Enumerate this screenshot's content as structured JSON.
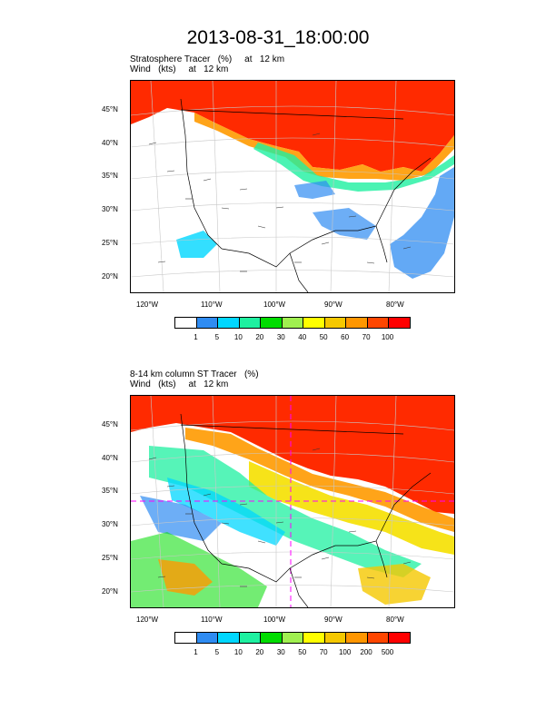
{
  "title": "2013-08-31_18:00:00",
  "panels": [
    {
      "title_line1": "Stratosphere Tracer   (%)     at   12 km",
      "title_line2": "Wind   (kts)     at   12 km",
      "lat_labels": [
        "45°N",
        "40°N",
        "35°N",
        "30°N",
        "25°N",
        "20°N"
      ],
      "lon_labels": [
        "120°W",
        "110°W",
        "100°W",
        "90°W",
        "80°W"
      ],
      "colorbar_labels": [
        "1",
        "5",
        "10",
        "20",
        "30",
        "40",
        "50",
        "60",
        "70",
        "100"
      ]
    },
    {
      "title_line1": "8-14 km column ST Tracer   (%)",
      "title_line2": "Wind   (kts)     at   12 km",
      "lat_labels": [
        "45°N",
        "40°N",
        "35°N",
        "30°N",
        "25°N",
        "20°N"
      ],
      "lon_labels": [
        "120°W",
        "110°W",
        "100°W",
        "90°W",
        "80°W"
      ],
      "colorbar_labels": [
        "1",
        "5",
        "10",
        "20",
        "30",
        "50",
        "70",
        "100",
        "200",
        "500"
      ]
    }
  ],
  "colorbar_colors": [
    "#ffffff",
    "#2f8cf2",
    "#00d7ff",
    "#1ef0a0",
    "#00dc00",
    "#a0f050",
    "#ffff00",
    "#f5c800",
    "#ff9600",
    "#ff4600",
    "#ff0000"
  ]
}
